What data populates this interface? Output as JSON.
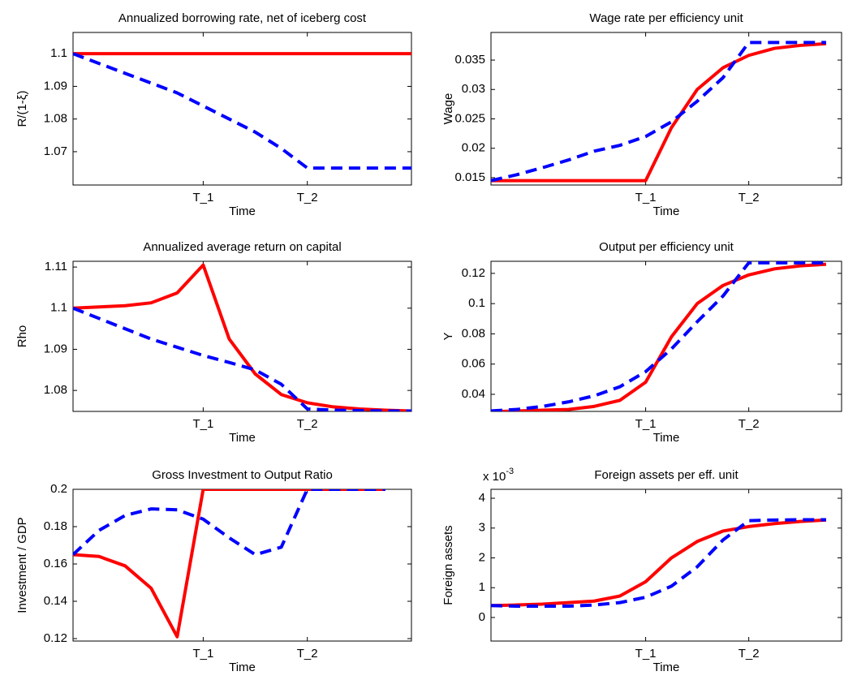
{
  "chart_data": [
    {
      "type": "line",
      "title": "Annualized borrowing rate, net of iceberg cost",
      "xlabel": "Time",
      "ylabel": "R/(1-ξ)",
      "x": [
        0,
        1,
        2,
        3,
        4,
        5,
        6,
        7,
        8,
        9,
        10,
        11,
        12,
        13
      ],
      "xlim": [
        0,
        13
      ],
      "xticks": [
        {
          "value": 5,
          "label": "T_1"
        },
        {
          "value": 9,
          "label": "T_2"
        }
      ],
      "ylim": [
        1.0598,
        1.1065
      ],
      "yticks": [
        1.07,
        1.08,
        1.09,
        1.1
      ],
      "series": [
        {
          "color": "#ff0000",
          "style": "solid",
          "values": [
            1.1,
            1.1,
            1.1,
            1.1,
            1.1,
            1.1,
            1.1,
            1.1,
            1.1,
            1.1,
            1.1,
            1.1,
            1.1,
            1.1
          ]
        },
        {
          "color": "#0000ff",
          "style": "dashed",
          "values": [
            1.1,
            1.097,
            1.094,
            1.091,
            1.088,
            1.084,
            1.08,
            1.076,
            1.071,
            1.065,
            1.065,
            1.065,
            1.065,
            1.065
          ]
        }
      ]
    },
    {
      "type": "line",
      "title": "Wage rate per efficiency unit",
      "xlabel": "Time",
      "ylabel": "Wage",
      "x": [
        0,
        1,
        2,
        3,
        4,
        5,
        6,
        7,
        8,
        9,
        10,
        11,
        12,
        13
      ],
      "xlim": [
        0,
        13.6
      ],
      "xticks": [
        {
          "value": 6,
          "label": "T_1"
        },
        {
          "value": 10,
          "label": "T_2"
        }
      ],
      "ylim": [
        0.01375,
        0.0397
      ],
      "yticks": [
        0.015,
        0.02,
        0.025,
        0.03,
        0.035
      ],
      "series": [
        {
          "color": "#ff0000",
          "style": "solid",
          "values": [
            0.0145,
            0.0145,
            0.0145,
            0.0145,
            0.0145,
            0.0145,
            0.0145,
            0.0235,
            0.03,
            0.0337,
            0.0358,
            0.037,
            0.0375,
            0.0378
          ]
        },
        {
          "color": "#0000ff",
          "style": "dashed",
          "values": [
            0.0145,
            0.0155,
            0.0167,
            0.018,
            0.0195,
            0.0205,
            0.022,
            0.0245,
            0.028,
            0.032,
            0.038,
            0.038,
            0.038,
            0.038
          ]
        }
      ]
    },
    {
      "type": "line",
      "title": "Annualized average return on capital",
      "xlabel": "Time",
      "ylabel": "Rho",
      "x": [
        0,
        1,
        2,
        3,
        4,
        5,
        6,
        7,
        8,
        9,
        10,
        11,
        12,
        13
      ],
      "xlim": [
        0,
        13
      ],
      "xticks": [
        {
          "value": 5,
          "label": "T_1"
        },
        {
          "value": 9,
          "label": "T_2"
        }
      ],
      "ylim": [
        1.0749,
        1.1114
      ],
      "yticks": [
        1.08,
        1.09,
        1.1,
        1.11
      ],
      "series": [
        {
          "color": "#ff0000",
          "style": "solid",
          "values": [
            1.1,
            1.1003,
            1.1006,
            1.1013,
            1.1037,
            1.1105,
            1.0925,
            1.084,
            1.079,
            1.077,
            1.076,
            1.0755,
            1.0752,
            1.075
          ]
        },
        {
          "color": "#0000ff",
          "style": "dashed",
          "values": [
            1.1,
            1.0975,
            1.095,
            1.0925,
            1.0905,
            1.0885,
            1.0868,
            1.085,
            1.0815,
            1.0755,
            1.0752,
            1.0751,
            1.075,
            1.075
          ]
        }
      ]
    },
    {
      "type": "line",
      "title": "Output per efficiency unit",
      "xlabel": "Time",
      "ylabel": "Y",
      "x": [
        0,
        1,
        2,
        3,
        4,
        5,
        6,
        7,
        8,
        9,
        10,
        11,
        12,
        13
      ],
      "xlim": [
        0,
        13.6
      ],
      "xticks": [
        {
          "value": 6,
          "label": "T_1"
        },
        {
          "value": 10,
          "label": "T_2"
        }
      ],
      "ylim": [
        0.0287,
        0.128
      ],
      "yticks": [
        0.04,
        0.06,
        0.08,
        0.1,
        0.12
      ],
      "series": [
        {
          "color": "#ff0000",
          "style": "solid",
          "values": [
            0.0285,
            0.029,
            0.0295,
            0.03,
            0.032,
            0.036,
            0.048,
            0.078,
            0.1,
            0.112,
            0.119,
            0.123,
            0.125,
            0.126
          ]
        },
        {
          "color": "#0000ff",
          "style": "dashed",
          "values": [
            0.029,
            0.03,
            0.032,
            0.035,
            0.039,
            0.045,
            0.055,
            0.07,
            0.088,
            0.105,
            0.127,
            0.127,
            0.127,
            0.127
          ]
        }
      ]
    },
    {
      "type": "line",
      "title": "Gross Investment to Output Ratio",
      "xlabel": "Time",
      "ylabel": "Investment / GDP",
      "x": [
        0,
        1,
        2,
        3,
        4,
        5,
        6,
        7,
        8,
        9,
        10,
        11,
        12
      ],
      "xlim": [
        0,
        13
      ],
      "xticks": [
        {
          "value": 5,
          "label": "T_1"
        },
        {
          "value": 9,
          "label": "T_2"
        }
      ],
      "ylim": [
        0.1187,
        0.2
      ],
      "yticks": [
        0.12,
        0.14,
        0.16,
        0.18,
        0.2
      ],
      "series": [
        {
          "color": "#ff0000",
          "style": "solid",
          "values": [
            0.165,
            0.164,
            0.159,
            0.147,
            0.121,
            0.2,
            0.2,
            0.2,
            0.2,
            0.2,
            0.2,
            0.2,
            0.2
          ]
        },
        {
          "color": "#0000ff",
          "style": "dashed",
          "values": [
            0.165,
            0.178,
            0.186,
            0.1895,
            0.189,
            0.184,
            0.174,
            0.165,
            0.169,
            0.2,
            0.2,
            0.2,
            0.2
          ]
        }
      ]
    },
    {
      "type": "line",
      "title": "Foreign assets per eff. unit",
      "xlabel": "Time",
      "ylabel": "Foreign assets",
      "yscale": {
        "base": "x 10",
        "exponent": "-3"
      },
      "x": [
        0,
        1,
        2,
        3,
        4,
        5,
        6,
        7,
        8,
        9,
        10,
        11,
        12,
        13
      ],
      "xlim": [
        0,
        13.6
      ],
      "xticks": [
        {
          "value": 6,
          "label": "T_1"
        },
        {
          "value": 10,
          "label": "T_2"
        }
      ],
      "ylim": [
        -0.79,
        4.3
      ],
      "yticks": [
        0,
        1,
        2,
        3,
        4
      ],
      "series": [
        {
          "color": "#ff0000",
          "style": "solid",
          "values": [
            0.4,
            0.42,
            0.45,
            0.5,
            0.55,
            0.72,
            1.2,
            2.0,
            2.55,
            2.9,
            3.05,
            3.15,
            3.22,
            3.27
          ]
        },
        {
          "color": "#0000ff",
          "style": "dashed",
          "values": [
            0.4,
            0.38,
            0.38,
            0.38,
            0.42,
            0.5,
            0.68,
            1.05,
            1.7,
            2.6,
            3.25,
            3.27,
            3.28,
            3.28
          ]
        }
      ]
    }
  ]
}
